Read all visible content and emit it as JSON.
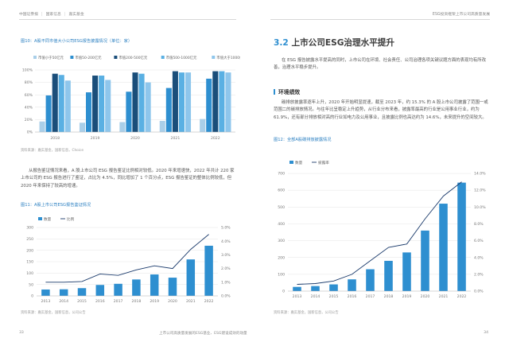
{
  "header": {
    "left_items": [
      "中国证券报",
      "国家信息",
      "嘉实基金"
    ],
    "right_title": "ESG投资框架上市公司高质量发展"
  },
  "left": {
    "fig10": {
      "title": "图10：A股不同市值大小公司ESG报告披露情况（单位：家）",
      "source": "资料来源：嘉实基金，国新信息，Choice"
    },
    "paragraph": "从报告鉴证情况来看，A 股上市公司 ESG 报告鉴证比例相对较低。2020 年来增速快，2022 年共计 220 家上市公司的 ESG 报告进行了鉴证，占比为 4.5%，同比增加了 1 个百分点，ESG 报告鉴证的整体比例较低，但 2020 年来保持了较高的增速。",
    "fig11": {
      "title": "图11：A股上市公司ESG报告鉴证情况",
      "source": "资料来源：嘉实基金，国新信息，公司公告"
    },
    "page_number": "33"
  },
  "right": {
    "section_number": "3.2",
    "section_title": "上市公司ESG治理水平提升",
    "intro": "在 ESG 报告披露水平提高的同时，上市公司在环境、社会责任、公司治理各项关键议题方面的表现均有所改善，治理水平稳步提升。",
    "subsection_title": "环境绩效",
    "env_paragraph": "碳排放披露率逐年上升，2020 年开始明显提速，截至 2023 年，约 15.3% 的 A 股上市公司披露了范围一或范围二的碳排放情况。与往年比呈稳定上升趋势，从行业分布来看，披露率最高的行业是公用事业行业，约为 61.9%，还有部分排放相对高的行业如电力及公用事业，且披露比例也高达约为 14.6%，未来提升的空间较大。",
    "fig12": {
      "title": "图12：全部A股碳排放披露情况",
      "source": "资料来源：嘉实基金，国新信息，公司公告"
    },
    "page_number": "34"
  },
  "footer": {
    "center_text": "上市公司高质量发展的ESG基业、ESG建设成效的动量"
  },
  "chart_data": [
    {
      "type": "bar",
      "title": "图10：A股不同市值大小公司ESG报告披露情况（单位：家）",
      "categories": [
        "2018",
        "2019",
        "2020",
        "2021",
        "2022"
      ],
      "series": [
        {
          "name": "市值小于50亿元",
          "color": "#a9cfe9",
          "values": [
            17,
            15,
            16,
            18,
            21
          ]
        },
        {
          "name": "市值50-200亿元",
          "color": "#2e8fd0",
          "values": [
            59,
            64,
            65,
            71,
            86
          ]
        },
        {
          "name": "市值200-500亿元",
          "color": "#1a4e7a",
          "values": [
            94,
            91,
            96,
            98,
            98
          ]
        },
        {
          "name": "市值500-1000亿元",
          "color": "#5ab0e3",
          "values": [
            92,
            91,
            94,
            96,
            98
          ]
        },
        {
          "name": "市值大于1000亿元",
          "color": "#8ec6ec",
          "values": [
            83,
            84,
            80,
            96,
            96
          ]
        }
      ],
      "ylim": [
        0,
        100
      ],
      "yticks": [
        "0%",
        "20%",
        "40%",
        "60%",
        "80%",
        "100%"
      ],
      "ylabel": "",
      "legend": "top"
    },
    {
      "type": "bar",
      "title": "图11：A股上市公司ESG报告鉴证情况",
      "categories": [
        "2013",
        "2014",
        "2015",
        "2016",
        "2017",
        "2018",
        "2019",
        "2020",
        "2021",
        "2022"
      ],
      "series": [
        {
          "name": "数量",
          "type": "bar",
          "axis": "left",
          "color": "#2e8fd0",
          "values": [
            28,
            29,
            34,
            48,
            53,
            72,
            94,
            80,
            160,
            220
          ]
        },
        {
          "name": "比例",
          "type": "line",
          "axis": "right",
          "color": "#1a3a6b",
          "values": [
            1.0,
            1.0,
            1.05,
            1.6,
            1.5,
            1.9,
            2.2,
            2.0,
            3.4,
            4.5
          ]
        }
      ],
      "ylim": [
        0,
        300
      ],
      "yticks": [
        "0",
        "50",
        "100",
        "150",
        "200",
        "250",
        "300"
      ],
      "y2lim": [
        0,
        5
      ],
      "y2ticks": [
        "0.0%",
        "1.0%",
        "2.0%",
        "3.0%",
        "4.0%",
        "5.0%"
      ],
      "legend": "top-left"
    },
    {
      "type": "bar",
      "title": "图12：全部A股碳排放披露情况",
      "categories": [
        "2013",
        "2014",
        "2015",
        "2016",
        "2017",
        "2018",
        "2019",
        "2020",
        "2021",
        "2022"
      ],
      "series": [
        {
          "name": "数量",
          "type": "bar",
          "axis": "left",
          "color": "#2e8fd0",
          "values": [
            25,
            30,
            40,
            70,
            130,
            180,
            230,
            360,
            520,
            645
          ]
        },
        {
          "name": "披露率",
          "type": "line",
          "axis": "right",
          "color": "#1a3a6b",
          "values": [
            0.8,
            0.9,
            1.2,
            2.0,
            3.6,
            5.2,
            5.6,
            8.6,
            11.3,
            13.0
          ]
        }
      ],
      "ylim": [
        0,
        700
      ],
      "yticks": [
        "0",
        "100",
        "200",
        "300",
        "400",
        "500",
        "600",
        "700"
      ],
      "y2lim": [
        0,
        14
      ],
      "y2ticks": [
        "0.0%",
        "2.0%",
        "4.0%",
        "6.0%",
        "8.0%",
        "10.0%",
        "12.0%",
        "14.0%"
      ],
      "legend": "top-left"
    }
  ]
}
